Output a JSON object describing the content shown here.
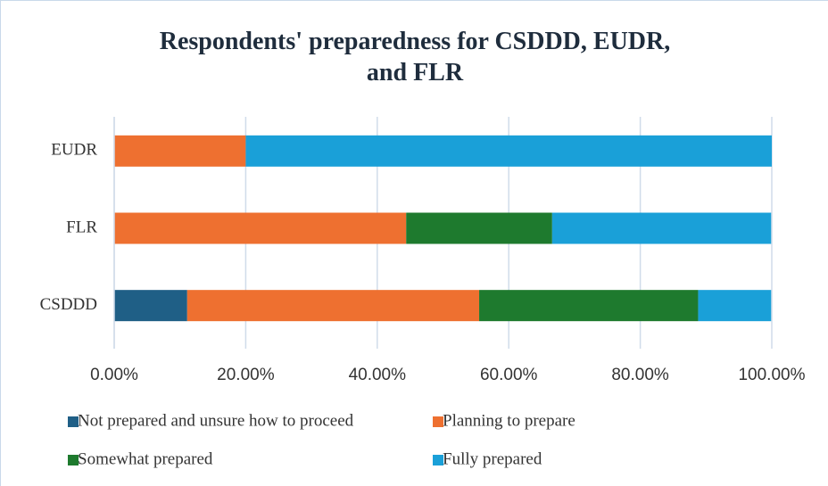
{
  "chart_data": {
    "type": "stacked-bar-horizontal",
    "title": "Respondents' preparedness for CSDDD, EUDR, and FLR",
    "categories": [
      "EUDR",
      "FLR",
      "CSDDD"
    ],
    "series": [
      {
        "name": "Not prepared and unsure how to proceed",
        "color": "#1f5f86",
        "values": [
          0,
          0,
          11.1
        ]
      },
      {
        "name": "Planning to prepare",
        "color": "#ee7030",
        "values": [
          20,
          44.4,
          44.4
        ]
      },
      {
        "name": "Somewhat prepared",
        "color": "#1e7a2e",
        "values": [
          0,
          22.2,
          33.3
        ]
      },
      {
        "name": "Fully prepared",
        "color": "#1aa0d8",
        "values": [
          80,
          33.3,
          11.1
        ]
      }
    ],
    "xlim": [
      0,
      100
    ],
    "xticks": [
      {
        "value": 0,
        "label": "0.00%"
      },
      {
        "value": 20,
        "label": "20.00%"
      },
      {
        "value": 40,
        "label": "40.00%"
      },
      {
        "value": 60,
        "label": "60.00%"
      },
      {
        "value": 80,
        "label": "80.00%"
      },
      {
        "value": 100,
        "label": "100.00%"
      }
    ],
    "grid": true,
    "legend": "bottom"
  }
}
